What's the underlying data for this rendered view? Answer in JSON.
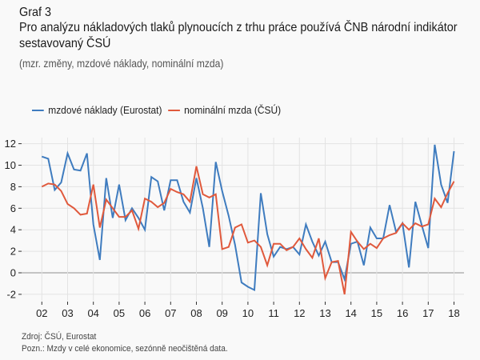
{
  "header": {
    "graph_number": "Graf 3",
    "title": "Pro analýzu nákladových tlaků plynoucích z trhu práce používá ČNB národní indikátor sestavovaný ČSÚ",
    "subtitle": "(mzr. změny, mzdové náklady, nominální mzda)"
  },
  "footer": {
    "source": "Zdroj: ČSÚ, Eurostat",
    "note": "Pozn.: Mzdy v celé ekonomice, sezónně neočištěná data."
  },
  "chart_data": {
    "type": "line",
    "title": "Pro analýzu nákladových tlaků plynoucích z trhu práce používá ČNB národní indikátor sestavovaný ČSÚ",
    "subtitle": "(mzr. změny, mzdové náklady, nominální mzda)",
    "xlabel": "",
    "ylabel": "",
    "ylim": [
      -2,
      12
    ],
    "yticks": [
      -2,
      0,
      2,
      4,
      6,
      8,
      10,
      12
    ],
    "xtick_labels": [
      "02",
      "03",
      "04",
      "05",
      "06",
      "07",
      "08",
      "09",
      "10",
      "11",
      "12",
      "13",
      "14",
      "15",
      "16",
      "17",
      "18"
    ],
    "x_start": "2002Q1",
    "frequency": "quarterly",
    "grid": true,
    "legend_position": "top-left",
    "series": [
      {
        "name": "mzdové náklady (Eurostat)",
        "color": "#3f7cbf",
        "values": [
          10.8,
          10.6,
          7.7,
          8.4,
          11.1,
          9.6,
          9.5,
          11.1,
          4.5,
          1.2,
          8.8,
          5.1,
          8.2,
          4.9,
          6.0,
          5.1,
          4.0,
          8.9,
          8.5,
          5.8,
          8.6,
          8.6,
          6.6,
          5.6,
          8.8,
          6.0,
          2.4,
          10.3,
          7.6,
          5.3,
          2.6,
          -0.9,
          -1.3,
          -1.6,
          7.4,
          3.6,
          1.5,
          2.4,
          2.2,
          2.4,
          1.7,
          4.5,
          2.9,
          1.6,
          2.9,
          1.0,
          1.0,
          -0.6,
          2.7,
          2.9,
          0.7,
          4.2,
          3.2,
          3.2,
          6.3,
          3.8,
          4.6,
          0.5,
          6.6,
          4.4,
          2.3,
          11.9,
          8.2,
          6.5,
          11.3
        ]
      },
      {
        "name": "nominální mzda (ČSÚ)",
        "color": "#e0593c",
        "values": [
          8.0,
          8.3,
          8.2,
          7.6,
          6.4,
          6.0,
          5.4,
          5.5,
          8.2,
          4.2,
          6.8,
          6.0,
          5.2,
          5.2,
          5.8,
          4.1,
          6.9,
          6.6,
          6.1,
          6.5,
          7.8,
          7.5,
          7.3,
          6.6,
          9.9,
          7.3,
          7.0,
          7.3,
          2.2,
          2.4,
          4.2,
          4.5,
          2.8,
          3.0,
          2.4,
          0.7,
          2.7,
          2.7,
          2.1,
          2.4,
          3.2,
          2.2,
          1.4,
          3.2,
          -0.5,
          1.0,
          1.1,
          -2.0,
          3.8,
          2.9,
          2.2,
          2.7,
          2.3,
          3.2,
          3.5,
          3.7,
          4.6,
          4.0,
          4.6,
          4.3,
          4.5,
          6.9,
          6.1,
          7.4,
          8.5
        ]
      }
    ]
  }
}
